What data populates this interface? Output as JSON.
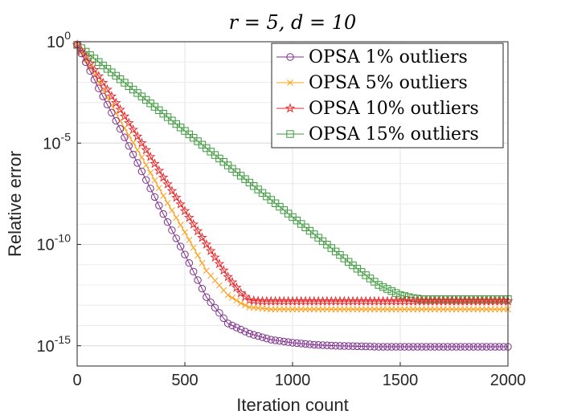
{
  "chart_data": {
    "type": "line",
    "title": "r = 5, d = 10",
    "xlabel": "Iteration count",
    "ylabel": "Relative error",
    "xlim": [
      0,
      2000
    ],
    "ylim_log10": [
      -16,
      0
    ],
    "yscale": "log",
    "grid": true,
    "legend_position": "top-right",
    "x_ticks": [
      0,
      500,
      1000,
      1500,
      2000
    ],
    "x_tick_labels": [
      "0",
      "500",
      "1000",
      "1500",
      "2000"
    ],
    "y_ticks_log10": [
      0,
      -5,
      -10,
      -15
    ],
    "y_tick_labels": [
      {
        "base": "10",
        "exp": "0"
      },
      {
        "base": "10",
        "exp": "-5"
      },
      {
        "base": "10",
        "exp": "-10"
      },
      {
        "base": "10",
        "exp": "-15"
      }
    ],
    "marker_every": 20,
    "series": [
      {
        "name": "OPSA 1% outliers",
        "color": "#7e2f8e",
        "marker": "circle",
        "log10_points": [
          [
            0,
            -0.15
          ],
          [
            100,
            -2.3
          ],
          [
            200,
            -4.3
          ],
          [
            300,
            -6.4
          ],
          [
            400,
            -8.5
          ],
          [
            500,
            -10.5
          ],
          [
            600,
            -12.6
          ],
          [
            700,
            -13.9
          ],
          [
            800,
            -14.4
          ],
          [
            900,
            -14.7
          ],
          [
            1000,
            -14.85
          ],
          [
            1100,
            -14.95
          ],
          [
            1200,
            -15.0
          ],
          [
            1400,
            -15.05
          ],
          [
            2000,
            -15.05
          ]
        ]
      },
      {
        "name": "OPSA 5% outliers",
        "color": "#ff9f1a",
        "marker": "x",
        "log10_points": [
          [
            0,
            -0.15
          ],
          [
            100,
            -2.0
          ],
          [
            200,
            -3.9
          ],
          [
            300,
            -5.7
          ],
          [
            400,
            -7.6
          ],
          [
            500,
            -9.4
          ],
          [
            600,
            -11.3
          ],
          [
            700,
            -12.5
          ],
          [
            760,
            -12.9
          ],
          [
            800,
            -13.1
          ],
          [
            900,
            -13.2
          ],
          [
            1000,
            -13.2
          ],
          [
            2000,
            -13.2
          ]
        ]
      },
      {
        "name": "OPSA 10% outliers",
        "color": "#e8282b",
        "marker": "star",
        "log10_points": [
          [
            0,
            -0.15
          ],
          [
            100,
            -1.7
          ],
          [
            200,
            -3.35
          ],
          [
            300,
            -5.0
          ],
          [
            400,
            -6.7
          ],
          [
            500,
            -8.35
          ],
          [
            600,
            -10.0
          ],
          [
            700,
            -11.6
          ],
          [
            760,
            -12.4
          ],
          [
            800,
            -12.75
          ],
          [
            850,
            -12.8
          ],
          [
            2000,
            -12.8
          ]
        ]
      },
      {
        "name": "OPSA 15% outliers",
        "color": "#3a9a3a",
        "marker": "square",
        "log10_points": [
          [
            0,
            -0.15
          ],
          [
            100,
            -1.0
          ],
          [
            200,
            -1.85
          ],
          [
            300,
            -2.7
          ],
          [
            400,
            -3.55
          ],
          [
            500,
            -4.4
          ],
          [
            600,
            -5.25
          ],
          [
            700,
            -6.1
          ],
          [
            800,
            -6.95
          ],
          [
            900,
            -7.8
          ],
          [
            1000,
            -8.65
          ],
          [
            1100,
            -9.5
          ],
          [
            1200,
            -10.35
          ],
          [
            1300,
            -11.2
          ],
          [
            1400,
            -12.0
          ],
          [
            1500,
            -12.5
          ],
          [
            1560,
            -12.65
          ],
          [
            1600,
            -12.7
          ],
          [
            2000,
            -12.7
          ]
        ]
      }
    ]
  }
}
